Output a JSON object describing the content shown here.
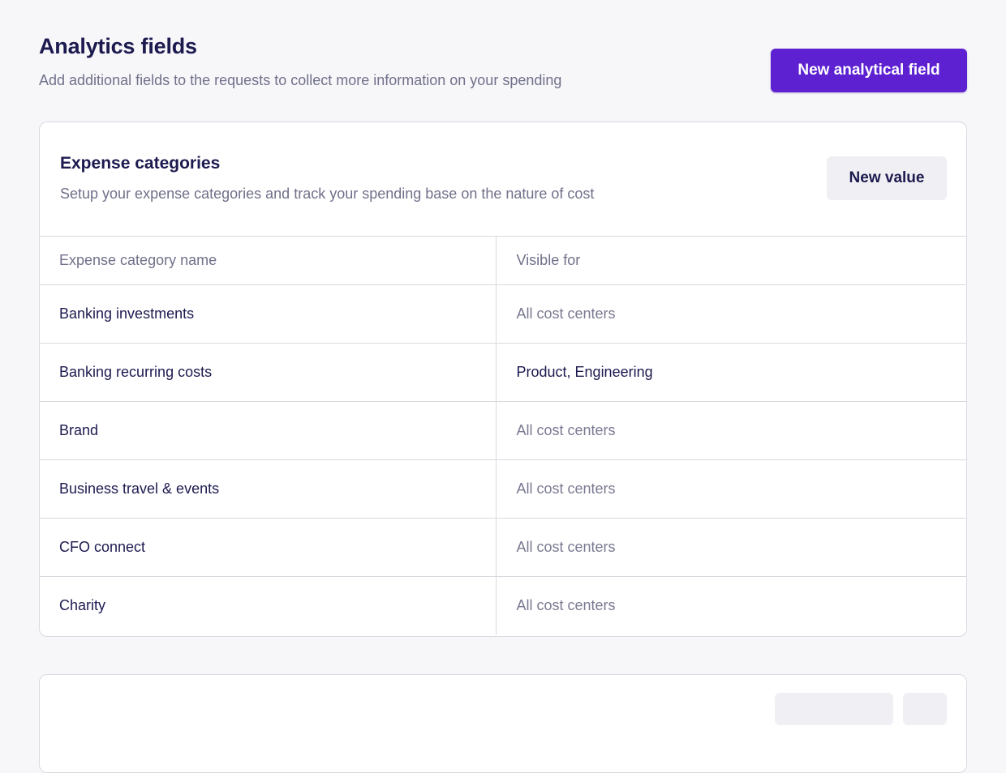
{
  "header": {
    "title": "Analytics fields",
    "subtitle": "Add additional fields to the requests to collect more information on your spending",
    "primary_action": "New analytical field"
  },
  "card": {
    "title": "Expense categories",
    "subtitle": "Setup your expense categories and track your spending base on the nature of cost",
    "action": "New value",
    "columns": [
      "Expense category name",
      "Visible for"
    ],
    "rows": [
      {
        "name": "Banking investments",
        "visible_for": "All cost centers",
        "restricted": false
      },
      {
        "name": "Banking recurring costs",
        "visible_for": "Product, Engineering",
        "restricted": true
      },
      {
        "name": "Brand",
        "visible_for": "All cost centers",
        "restricted": false
      },
      {
        "name": "Business travel & events",
        "visible_for": "All cost centers",
        "restricted": false
      },
      {
        "name": "CFO connect",
        "visible_for": "All cost centers",
        "restricted": false
      },
      {
        "name": "Charity",
        "visible_for": "All cost centers",
        "restricted": false
      }
    ]
  },
  "colors": {
    "primary": "#5d21d2",
    "title": "#1c1a4f",
    "muted": "#70708a",
    "border": "#d9d9e0",
    "background": "#f7f7fa",
    "secondary_button": "#f0f0f4"
  }
}
